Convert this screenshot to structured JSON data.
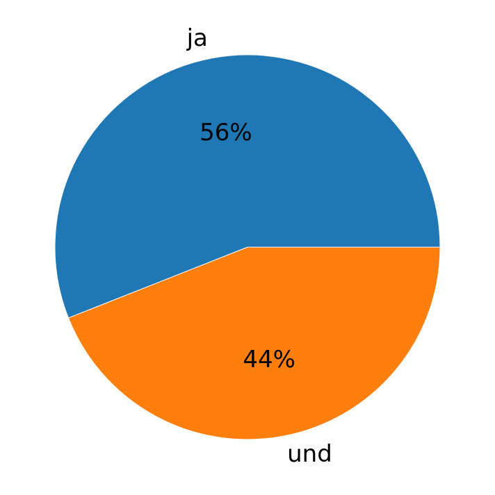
{
  "chart_data": {
    "type": "pie",
    "title": "",
    "start_angle_deg": 0,
    "direction": "counterclockwise",
    "slices": [
      {
        "label": "ja",
        "value": 56,
        "pct_label": "56%",
        "color": "#1f77b4"
      },
      {
        "label": "und",
        "value": 44,
        "pct_label": "44%",
        "color": "#ff7f0e"
      }
    ]
  }
}
